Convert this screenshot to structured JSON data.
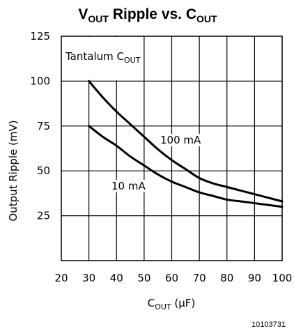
{
  "chart_data": {
    "type": "line",
    "title": {
      "main": "V",
      "sub": "OUT",
      "mid": " Ripple vs. C",
      "sub2": "OUT"
    },
    "xlabel": {
      "main": "C",
      "sub": "OUT",
      "unit": " (μF)"
    },
    "ylabel": "Output Ripple (mV)",
    "xlim": [
      20,
      100
    ],
    "ylim": [
      0,
      125
    ],
    "xticks": [
      20,
      30,
      40,
      50,
      60,
      70,
      80,
      90,
      100
    ],
    "yticks": [
      25,
      50,
      75,
      100,
      125
    ],
    "grid": true,
    "annotation_box": {
      "main": "Tantalum C",
      "sub": "OUT"
    },
    "series": [
      {
        "name": "100 mA",
        "x": [
          30,
          35,
          40,
          45,
          50,
          55,
          60,
          65,
          70,
          75,
          80,
          85,
          90,
          95,
          100
        ],
        "y": [
          100,
          91,
          83,
          76,
          69,
          62,
          56,
          51,
          46,
          43,
          41,
          39,
          37,
          35,
          33
        ]
      },
      {
        "name": "10 mA",
        "x": [
          30,
          35,
          40,
          45,
          50,
          55,
          60,
          65,
          70,
          75,
          80,
          85,
          90,
          95,
          100
        ],
        "y": [
          75,
          69,
          64,
          58,
          53,
          48,
          44,
          41,
          38,
          36,
          34,
          33,
          32,
          31,
          30
        ]
      }
    ]
  },
  "figure_id": "10103731"
}
